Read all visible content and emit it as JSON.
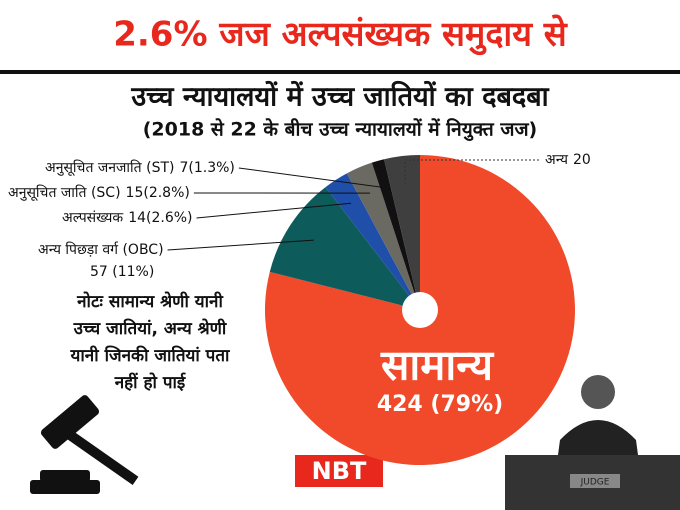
{
  "chart_data": {
    "type": "pie",
    "title": "2.6% जज अल्पसंख्यक समुदाय से",
    "subtitle": "उच्च न्यायालयों में उच्च जातियों का दबदबा",
    "subtitle2": "(2018 से 22 के बीच उच्च न्यायालयों में नियुक्त जज)",
    "categories": [
      "सामान्य",
      "अन्य पिछड़ा वर्ग (OBC)",
      "अल्पसंख्यक",
      "अनुसूचित जाति (SC)",
      "अनुसूचित जनजाति (ST)",
      "अन्य"
    ],
    "values": [
      424,
      57,
      14,
      15,
      7,
      20
    ],
    "value_labels": [
      "424 (79%)",
      "57 (11%)",
      "14(2.6%)",
      "15(2.8%)",
      "7(1.3%)",
      "20"
    ],
    "colors": [
      "#f04a2a",
      "#0e5b5c",
      "#1f4fa8",
      "#6b6a62",
      "#111111",
      "#3f3f3f"
    ],
    "note": [
      "नोटः सामान्य श्रेणी यानी",
      "उच्च जातियां, अन्य श्रेणी",
      "यानी जिनकी जातियां पता",
      "नहीं हो पाई"
    ],
    "logo": "NBT",
    "sign": "JUDGE"
  }
}
